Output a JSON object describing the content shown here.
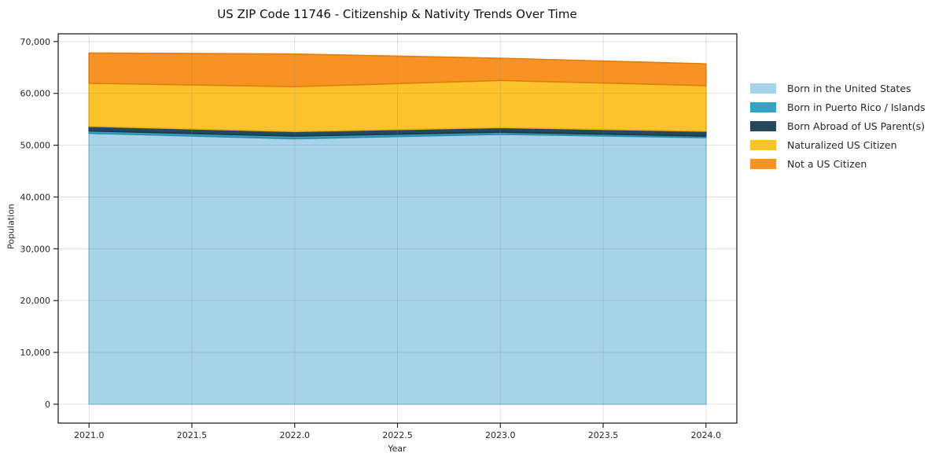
{
  "page": {
    "background": "#ffffff"
  },
  "chart_data": {
    "type": "area",
    "stacked": true,
    "title": "US ZIP Code 11746 - Citizenship & Nativity Trends Over Time",
    "xlabel": "Year",
    "ylabel": "Population",
    "x": [
      2021,
      2022,
      2023,
      2024
    ],
    "series": [
      {
        "name": "Born in the United States",
        "color": "#a6d3ea",
        "edge_color": "#8fc4e0",
        "values": [
          52300,
          51250,
          52100,
          51450
        ]
      },
      {
        "name": "Born in Puerto Rico / Islands",
        "color": "#38a2c1",
        "edge_color": "#2d8aa5",
        "values": [
          450,
          500,
          400,
          300
        ]
      },
      {
        "name": "Born Abroad of US Parent(s)",
        "color": "#24485c",
        "edge_color": "#19374a",
        "values": [
          900,
          900,
          900,
          950
        ]
      },
      {
        "name": "Naturalized US Citizen",
        "color": "#fcc32d",
        "edge_color": "#edb11a",
        "values": [
          8300,
          8650,
          9100,
          8800
        ]
      },
      {
        "name": "Not a US Citizen",
        "color": "#f79324",
        "edge_color": "#e17d0e",
        "values": [
          5850,
          6300,
          4300,
          4200
        ]
      }
    ],
    "x_ticks": {
      "values": [
        2021.0,
        2021.5,
        2022.0,
        2022.5,
        2023.0,
        2023.5,
        2024.0
      ],
      "labels": [
        "2021.0",
        "2021.5",
        "2022.0",
        "2022.5",
        "2023.0",
        "2023.5",
        "2024.0"
      ]
    },
    "y_ticks": {
      "values": [
        0,
        10000,
        20000,
        30000,
        40000,
        50000,
        60000,
        70000
      ],
      "labels": [
        "0",
        "10,000",
        "20,000",
        "30,000",
        "40,000",
        "50,000",
        "60,000",
        "70,000"
      ]
    },
    "xlim": [
      2020.85,
      2024.15
    ],
    "ylim": [
      -3650,
      71500
    ],
    "grid": true,
    "grid_color": "rgba(130,130,130,0.25)",
    "spine_color": "#262626",
    "legend_position": "right"
  }
}
